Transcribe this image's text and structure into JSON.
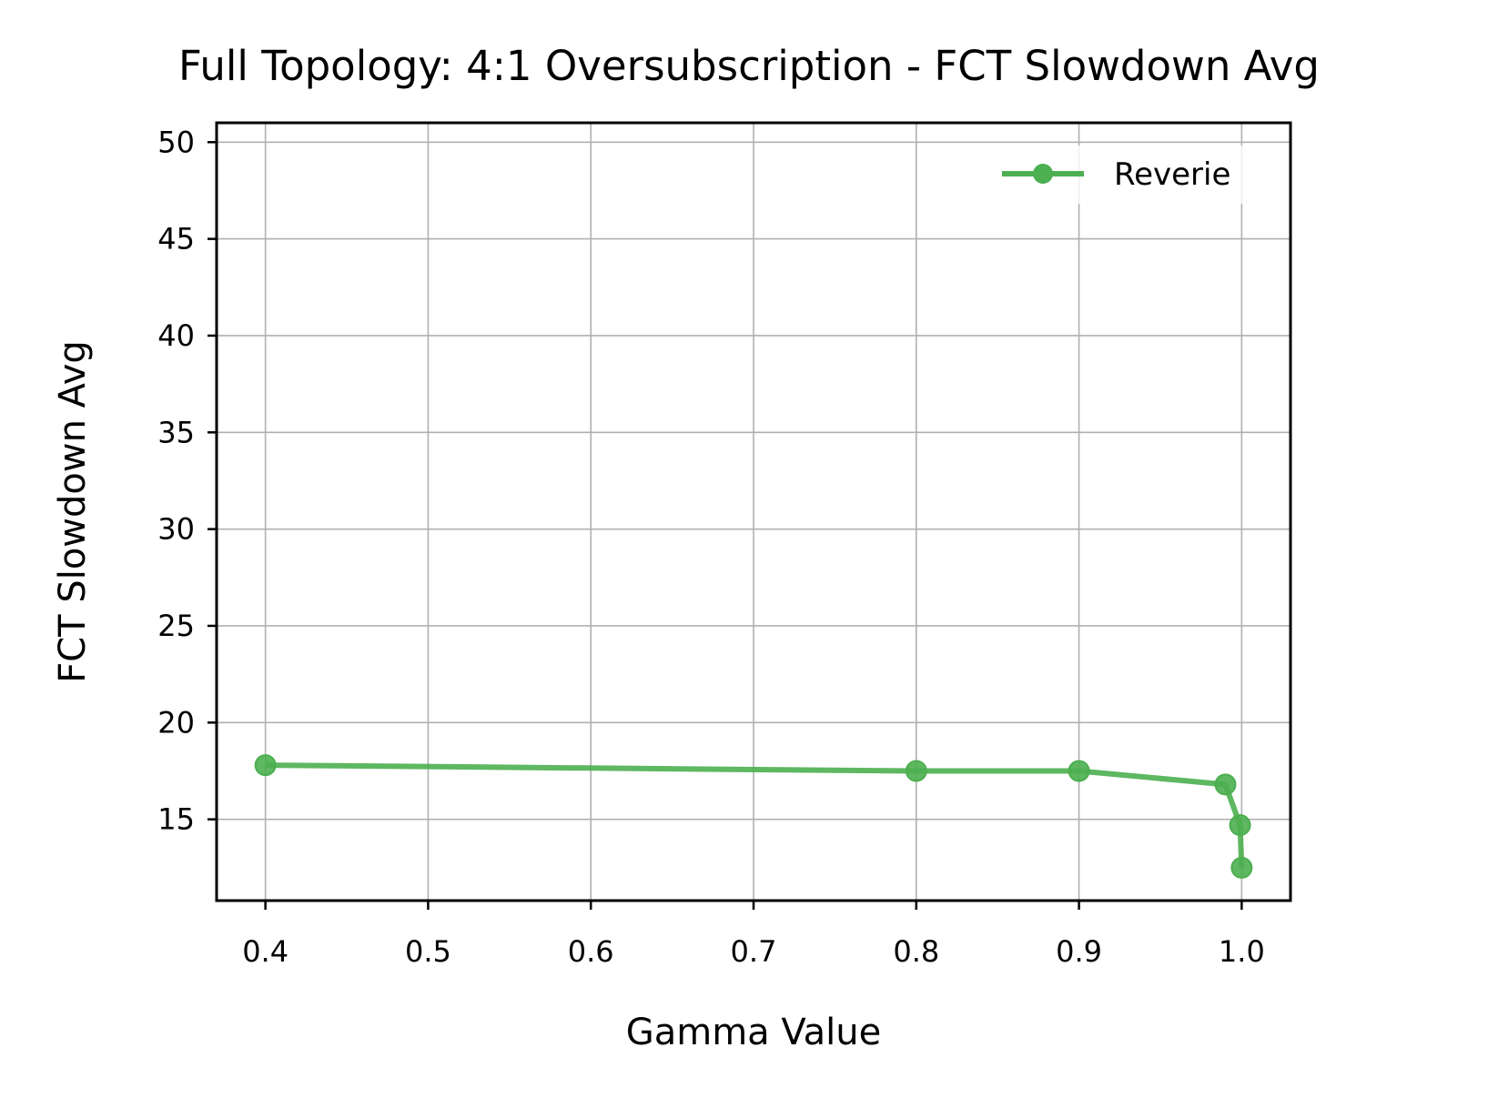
{
  "chart_data": {
    "type": "line",
    "title": "Full Topology: 4:1 Oversubscription - FCT Slowdown Avg",
    "xlabel": "Gamma Value",
    "ylabel": "FCT Slowdown Avg",
    "xlim": [
      0.37,
      1.03
    ],
    "ylim": [
      10.8,
      51
    ],
    "xticks": [
      0.4,
      0.5,
      0.6,
      0.7,
      0.8,
      0.9,
      1.0
    ],
    "xtick_labels": [
      "0.4",
      "0.5",
      "0.6",
      "0.7",
      "0.8",
      "0.9",
      "1.0"
    ],
    "yticks": [
      15,
      20,
      25,
      30,
      35,
      40,
      45,
      50
    ],
    "ytick_labels": [
      "15",
      "20",
      "25",
      "30",
      "35",
      "40",
      "45",
      "50"
    ],
    "grid": true,
    "legend_position": "top-right",
    "series": [
      {
        "name": "Reverie",
        "color": "#4caf50",
        "marker": "circle",
        "x": [
          0.4,
          0.8,
          0.9,
          0.99,
          0.999,
          1.0
        ],
        "y": [
          17.8,
          17.5,
          17.5,
          16.8,
          14.7,
          12.5
        ]
      }
    ]
  }
}
